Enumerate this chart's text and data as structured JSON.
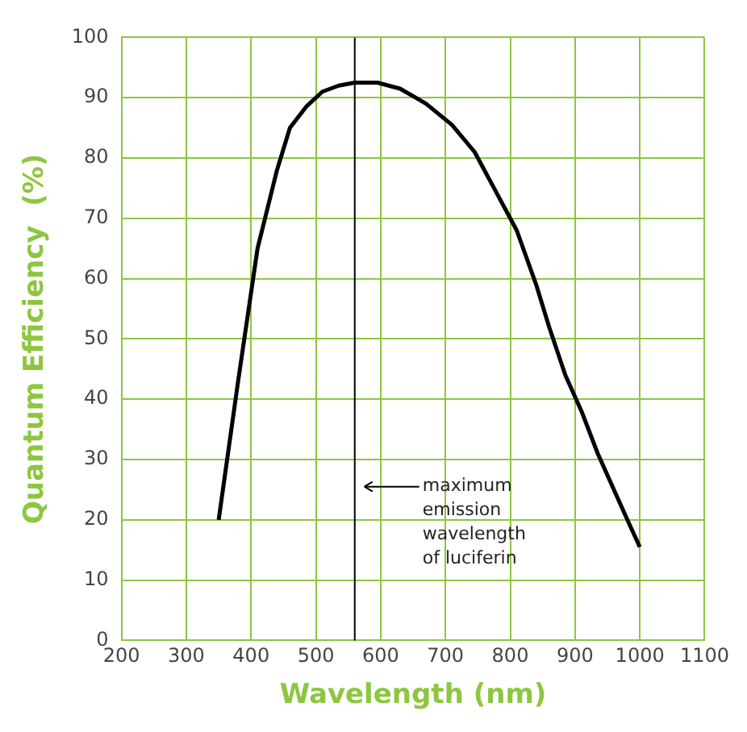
{
  "chart_data": {
    "type": "line",
    "xlabel": "Wavelength (nm)",
    "ylabel": "Quantum Efficiency  (%)",
    "series": [
      {
        "color": "#000000",
        "x": [
          350,
          380,
          410,
          440,
          460,
          485,
          510,
          535,
          560,
          595,
          630,
          670,
          710,
          745,
          780,
          810,
          840,
          860,
          885,
          910,
          935,
          960,
          985,
          1000
        ],
        "values": [
          20,
          43,
          65,
          78,
          85,
          88.5,
          91,
          92,
          92.5,
          92.5,
          91.5,
          89,
          85.5,
          81,
          74,
          68,
          59,
          52,
          44,
          38,
          31,
          25,
          19,
          15.5
        ]
      }
    ],
    "xlim": [
      200,
      1100
    ],
    "xticks": [
      200,
      300,
      400,
      500,
      600,
      700,
      800,
      900,
      1000,
      1100
    ],
    "ylim": [
      0,
      100
    ],
    "yticks": [
      0,
      10,
      20,
      30,
      40,
      50,
      60,
      70,
      80,
      90,
      100
    ],
    "grid": true,
    "legend": false,
    "marker": "none",
    "line_style": "solid",
    "ref_lines": [
      {
        "axis": "x",
        "value": 560,
        "label": "maximum emission wavelength of luciferin",
        "color": "#000000"
      }
    ]
  }
}
